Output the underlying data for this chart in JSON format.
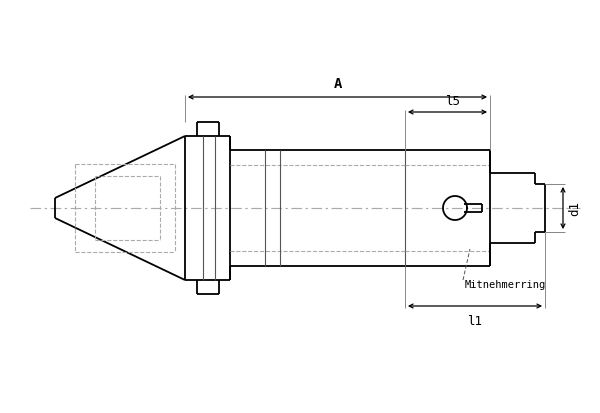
{
  "bg_color": "#ffffff",
  "line_color": "#000000",
  "dash_color": "#aaaaaa",
  "centerline_color": "#aaaaaa",
  "fig_width": 6.0,
  "fig_height": 4.14,
  "dpi": 100,
  "label_A": "A",
  "label_l5": "l5",
  "label_d1": "d1",
  "label_l1": "l1",
  "label_mitnehmerring": "Mitnehmerring"
}
